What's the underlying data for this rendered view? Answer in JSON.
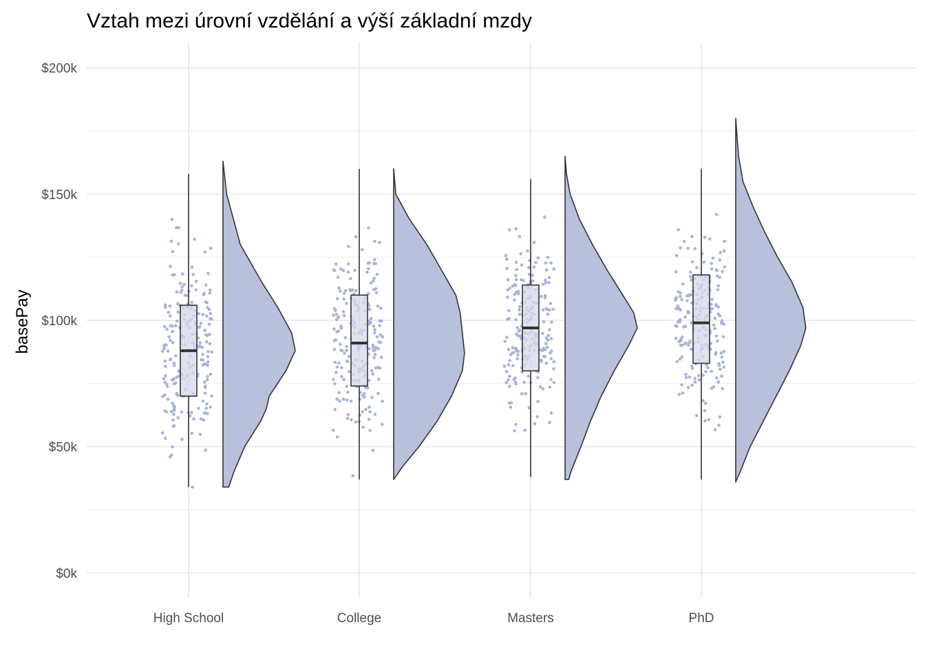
{
  "chart_data": {
    "type": "raincloud",
    "title": "Vztah mezi úrovní vzdělání a výší základní mzdy",
    "xlabel": "",
    "ylabel": "basePay",
    "ylim": [
      -10000,
      210000
    ],
    "y_ticks": [
      0,
      50000,
      100000,
      150000,
      200000
    ],
    "y_tick_labels": [
      "$0k",
      "$50k",
      "$100k",
      "$150k",
      "$200k"
    ],
    "categories": [
      "High School",
      "College",
      "Masters",
      "PhD"
    ],
    "grid": true,
    "fill_color": "#b8c1dc",
    "point_color": "#a9b3d6",
    "boxplots": [
      {
        "category": "High School",
        "min": 34000,
        "q1": 70000,
        "median": 88000,
        "q3": 106000,
        "max": 158000
      },
      {
        "category": "College",
        "min": 37000,
        "q1": 74000,
        "median": 91000,
        "q3": 110000,
        "max": 160000
      },
      {
        "category": "Masters",
        "min": 38000,
        "q1": 80000,
        "median": 97000,
        "q3": 114000,
        "max": 156000
      },
      {
        "category": "PhD",
        "min": 37000,
        "q1": 83000,
        "median": 99000,
        "q3": 118000,
        "max": 160000
      }
    ],
    "densities": [
      {
        "category": "High School",
        "y": [
          34000,
          40000,
          50000,
          60000,
          65000,
          70000,
          80000,
          88000,
          95000,
          105000,
          115000,
          130000,
          150000,
          163000
        ],
        "width": [
          0.08,
          0.15,
          0.3,
          0.52,
          0.6,
          0.64,
          0.87,
          1.0,
          0.95,
          0.76,
          0.54,
          0.24,
          0.05,
          0.0
        ]
      },
      {
        "category": "College",
        "y": [
          37000,
          42000,
          50000,
          60000,
          70000,
          80000,
          87000,
          95000,
          103000,
          110000,
          120000,
          130000,
          140000,
          150000,
          160000
        ],
        "width": [
          0.0,
          0.12,
          0.35,
          0.6,
          0.8,
          0.95,
          0.98,
          0.95,
          0.92,
          0.86,
          0.66,
          0.46,
          0.22,
          0.03,
          0.0
        ]
      },
      {
        "category": "Masters",
        "y": [
          37000,
          40000,
          50000,
          60000,
          70000,
          80000,
          90000,
          97000,
          103000,
          110000,
          120000,
          130000,
          140000,
          150000,
          158000,
          165000
        ],
        "width": [
          0.05,
          0.08,
          0.22,
          0.35,
          0.5,
          0.68,
          0.88,
          1.0,
          0.95,
          0.8,
          0.58,
          0.38,
          0.2,
          0.07,
          0.02,
          0.0
        ]
      },
      {
        "category": "PhD",
        "y": [
          36000,
          40000,
          50000,
          60000,
          70000,
          80000,
          90000,
          97000,
          105000,
          115000,
          125000,
          135000,
          145000,
          155000,
          165000,
          172000,
          180000
        ],
        "width": [
          0.0,
          0.06,
          0.2,
          0.38,
          0.56,
          0.74,
          0.9,
          0.97,
          0.93,
          0.78,
          0.58,
          0.4,
          0.24,
          0.1,
          0.04,
          0.02,
          0.0
        ]
      }
    ]
  }
}
